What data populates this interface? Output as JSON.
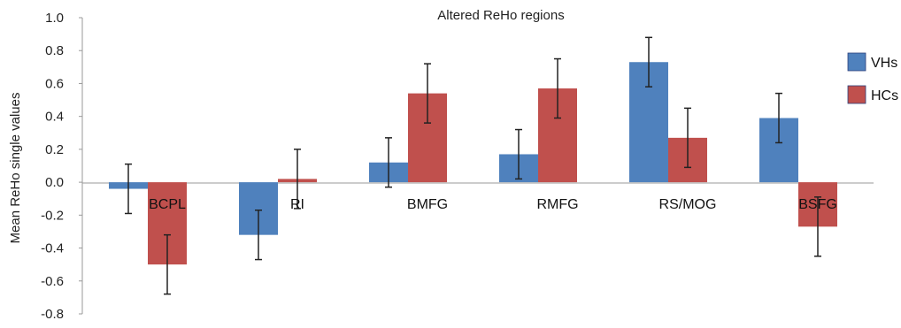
{
  "chart_data": {
    "type": "bar",
    "title": "Altered ReHo regions",
    "xlabel": "",
    "ylabel": "Mean ReHo single values",
    "ylim": [
      -0.8,
      1.0
    ],
    "yticks": [
      "1.0",
      "0.8",
      "0.6",
      "0.4",
      "0.2",
      "0.0",
      "-0.2",
      "-0.4",
      "-0.6",
      "-0.8"
    ],
    "categories": [
      "BCPL",
      "RI",
      "BMFG",
      "RMFG",
      "RS/MOG",
      "BSFG"
    ],
    "legend_position": "right",
    "series": [
      {
        "name": "VHs",
        "color": "#4F81BD",
        "values": [
          -0.04,
          -0.32,
          0.12,
          0.17,
          0.73,
          0.39
        ],
        "error": [
          0.15,
          0.15,
          0.15,
          0.15,
          0.15,
          0.15
        ]
      },
      {
        "name": "HCs",
        "color": "#C0504D",
        "values": [
          -0.5,
          0.02,
          0.54,
          0.57,
          0.27,
          -0.27
        ],
        "error": [
          0.18,
          0.18,
          0.18,
          0.18,
          0.18,
          0.18
        ]
      }
    ]
  }
}
